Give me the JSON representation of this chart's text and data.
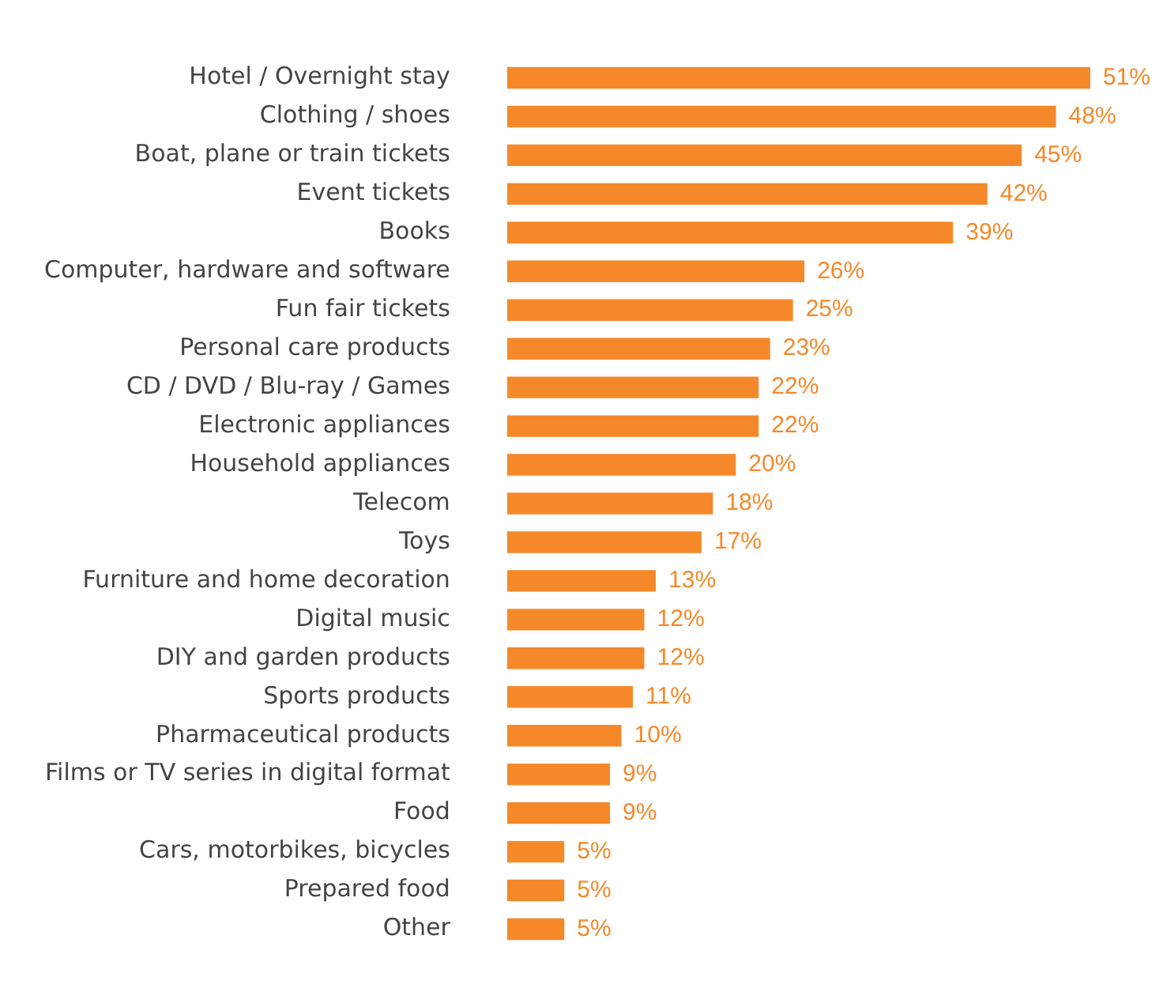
{
  "chart_data": {
    "type": "bar",
    "orientation": "horizontal",
    "categories": [
      "Hotel / Overnight stay",
      "Clothing / shoes",
      "Boat, plane or train tickets",
      "Event tickets",
      "Books",
      "Computer, hardware and software",
      "Fun fair tickets",
      "Personal care products",
      "CD / DVD / Blu-ray / Games",
      "Electronic appliances",
      "Household appliances",
      "Telecom",
      "Toys",
      "Furniture and home decoration",
      "Digital music",
      "DIY and garden products",
      "Sports products",
      "Pharmaceutical products",
      "Films or TV series in digital format",
      "Food",
      "Cars, motorbikes, bicycles",
      "Prepared food",
      "Other"
    ],
    "values": [
      51,
      48,
      45,
      42,
      39,
      26,
      25,
      23,
      22,
      22,
      20,
      18,
      17,
      13,
      12,
      12,
      11,
      10,
      9,
      9,
      5,
      5,
      5
    ],
    "value_labels": [
      "51%",
      "48%",
      "45%",
      "42%",
      "39%",
      "26%",
      "25%",
      "23%",
      "22%",
      "22%",
      "20%",
      "18%",
      "17%",
      "13%",
      "12%",
      "12%",
      "11%",
      "10%",
      "9%",
      "9%",
      "5%",
      "5%",
      "5%"
    ],
    "color": "#f5892a",
    "legend": false,
    "tick_labels": "y"
  }
}
